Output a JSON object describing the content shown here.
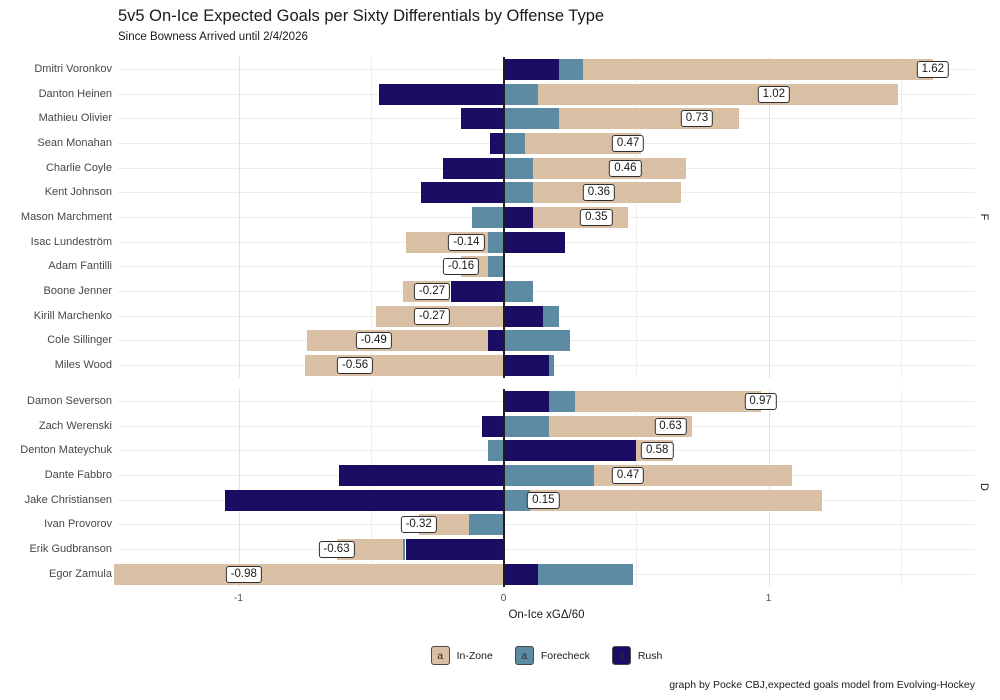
{
  "chart_data": {
    "type": "bar",
    "orientation": "horizontal",
    "stacked": true,
    "title": "5v5 On-Ice Expected Goals per Sixty Differentials by Offense Type",
    "subtitle": "Since Bowness Arrived until 2/4/2026",
    "xlabel": "On-Ice xGΔ/60",
    "caption": "graph by Pocke CBJ,expected goals model from Evolving-Hockey",
    "xlim": [
      -1.4547,
      1.7792
    ],
    "x_ticks": [
      -1,
      0,
      1
    ],
    "x_minor_gridlines": [
      -0.5,
      0.5,
      1.5
    ],
    "x_major_gridlines": [
      -1,
      1
    ],
    "zero_line": 0,
    "legend_position": "bottom",
    "series_stack_order_from_zero": [
      "rush",
      "forecheck",
      "in_zone"
    ],
    "legend": [
      {
        "key": "in_zone",
        "label": "In-Zone",
        "color": "#d9c0a5"
      },
      {
        "key": "forecheck",
        "label": "Forecheck",
        "color": "#5d8ba3"
      },
      {
        "key": "rush",
        "label": "Rush",
        "color": "#1b0c64"
      }
    ],
    "facets": [
      {
        "label": "F",
        "players": [
          {
            "name": "Dmitri Voronkov",
            "rush": 0.21,
            "forecheck": 0.09,
            "in_zone": 1.32,
            "total": 1.62
          },
          {
            "name": "Danton Heinen",
            "rush": -0.47,
            "forecheck": 0.13,
            "in_zone": 1.36,
            "total": 1.02
          },
          {
            "name": "Mathieu Olivier",
            "rush": -0.16,
            "forecheck": 0.21,
            "in_zone": 0.68,
            "total": 0.73
          },
          {
            "name": "Sean Monahan",
            "rush": -0.05,
            "forecheck": 0.08,
            "in_zone": 0.44,
            "total": 0.47
          },
          {
            "name": "Charlie Coyle",
            "rush": -0.23,
            "forecheck": 0.11,
            "in_zone": 0.58,
            "total": 0.46
          },
          {
            "name": "Kent Johnson",
            "rush": -0.31,
            "forecheck": 0.11,
            "in_zone": 0.56,
            "total": 0.36
          },
          {
            "name": "Mason Marchment",
            "rush": 0.11,
            "forecheck": -0.12,
            "in_zone": 0.36,
            "total": 0.35
          },
          {
            "name": "Isac Lundeström",
            "rush": 0.23,
            "forecheck": -0.06,
            "in_zone": -0.31,
            "total": -0.14
          },
          {
            "name": "Adam Fantilli",
            "rush": 0.0,
            "forecheck": -0.06,
            "in_zone": -0.1,
            "total": -0.16
          },
          {
            "name": "Boone Jenner",
            "rush": -0.2,
            "forecheck": 0.11,
            "in_zone": -0.18,
            "total": -0.27
          },
          {
            "name": "Kirill Marchenko",
            "rush": 0.15,
            "forecheck": 0.06,
            "in_zone": -0.48,
            "total": -0.27
          },
          {
            "name": "Cole Sillinger",
            "rush": -0.06,
            "forecheck": 0.25,
            "in_zone": -0.68,
            "total": -0.49
          },
          {
            "name": "Miles Wood",
            "rush": 0.17,
            "forecheck": 0.02,
            "in_zone": -0.75,
            "total": -0.56
          }
        ]
      },
      {
        "label": "D",
        "players": [
          {
            "name": "Damon Severson",
            "rush": 0.17,
            "forecheck": 0.1,
            "in_zone": 0.7,
            "total": 0.97
          },
          {
            "name": "Zach Werenski",
            "rush": -0.08,
            "forecheck": 0.17,
            "in_zone": 0.54,
            "total": 0.63
          },
          {
            "name": "Denton Mateychuk",
            "rush": 0.5,
            "forecheck": -0.06,
            "in_zone": 0.14,
            "total": 0.58
          },
          {
            "name": "Dante Fabbro",
            "rush": -0.62,
            "forecheck": 0.34,
            "in_zone": 0.75,
            "total": 0.47
          },
          {
            "name": "Jake Christiansen",
            "rush": -1.05,
            "forecheck": 0.1,
            "in_zone": 1.1,
            "total": 0.15
          },
          {
            "name": "Ivan Provorov",
            "rush": 0.0,
            "forecheck": -0.13,
            "in_zone": -0.19,
            "total": -0.32
          },
          {
            "name": "Erik Gudbranson",
            "rush": -0.37,
            "forecheck": -0.01,
            "in_zone": -0.25,
            "total": -0.63
          },
          {
            "name": "Egor Zamula",
            "rush": 0.13,
            "forecheck": 0.36,
            "in_zone": -1.47,
            "total": -0.98
          }
        ]
      }
    ]
  }
}
